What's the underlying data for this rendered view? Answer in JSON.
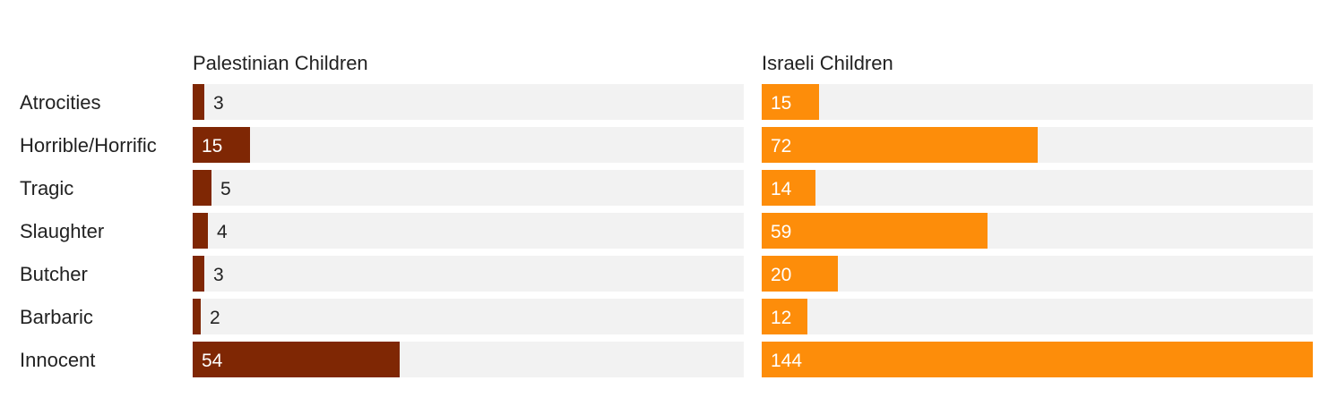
{
  "chart_data": {
    "type": "bar",
    "orientation": "horizontal",
    "layout": "small-multiples",
    "categories": [
      "Atrocities",
      "Horrible/Horrific",
      "Tragic",
      "Slaughter",
      "Butcher",
      "Barbaric",
      "Innocent"
    ],
    "shared_x_range": [
      0,
      144
    ],
    "series": [
      {
        "name": "Palestinian Children",
        "color": "#7f2704",
        "values": [
          3,
          15,
          5,
          4,
          3,
          2,
          54
        ]
      },
      {
        "name": "Israeli Children",
        "color": "#fd8d0a",
        "values": [
          15,
          72,
          14,
          59,
          20,
          12,
          144
        ]
      }
    ],
    "track_color": "#f2f2f2",
    "label_inside_color": "#ffffff",
    "label_outside_color": "#222222"
  }
}
